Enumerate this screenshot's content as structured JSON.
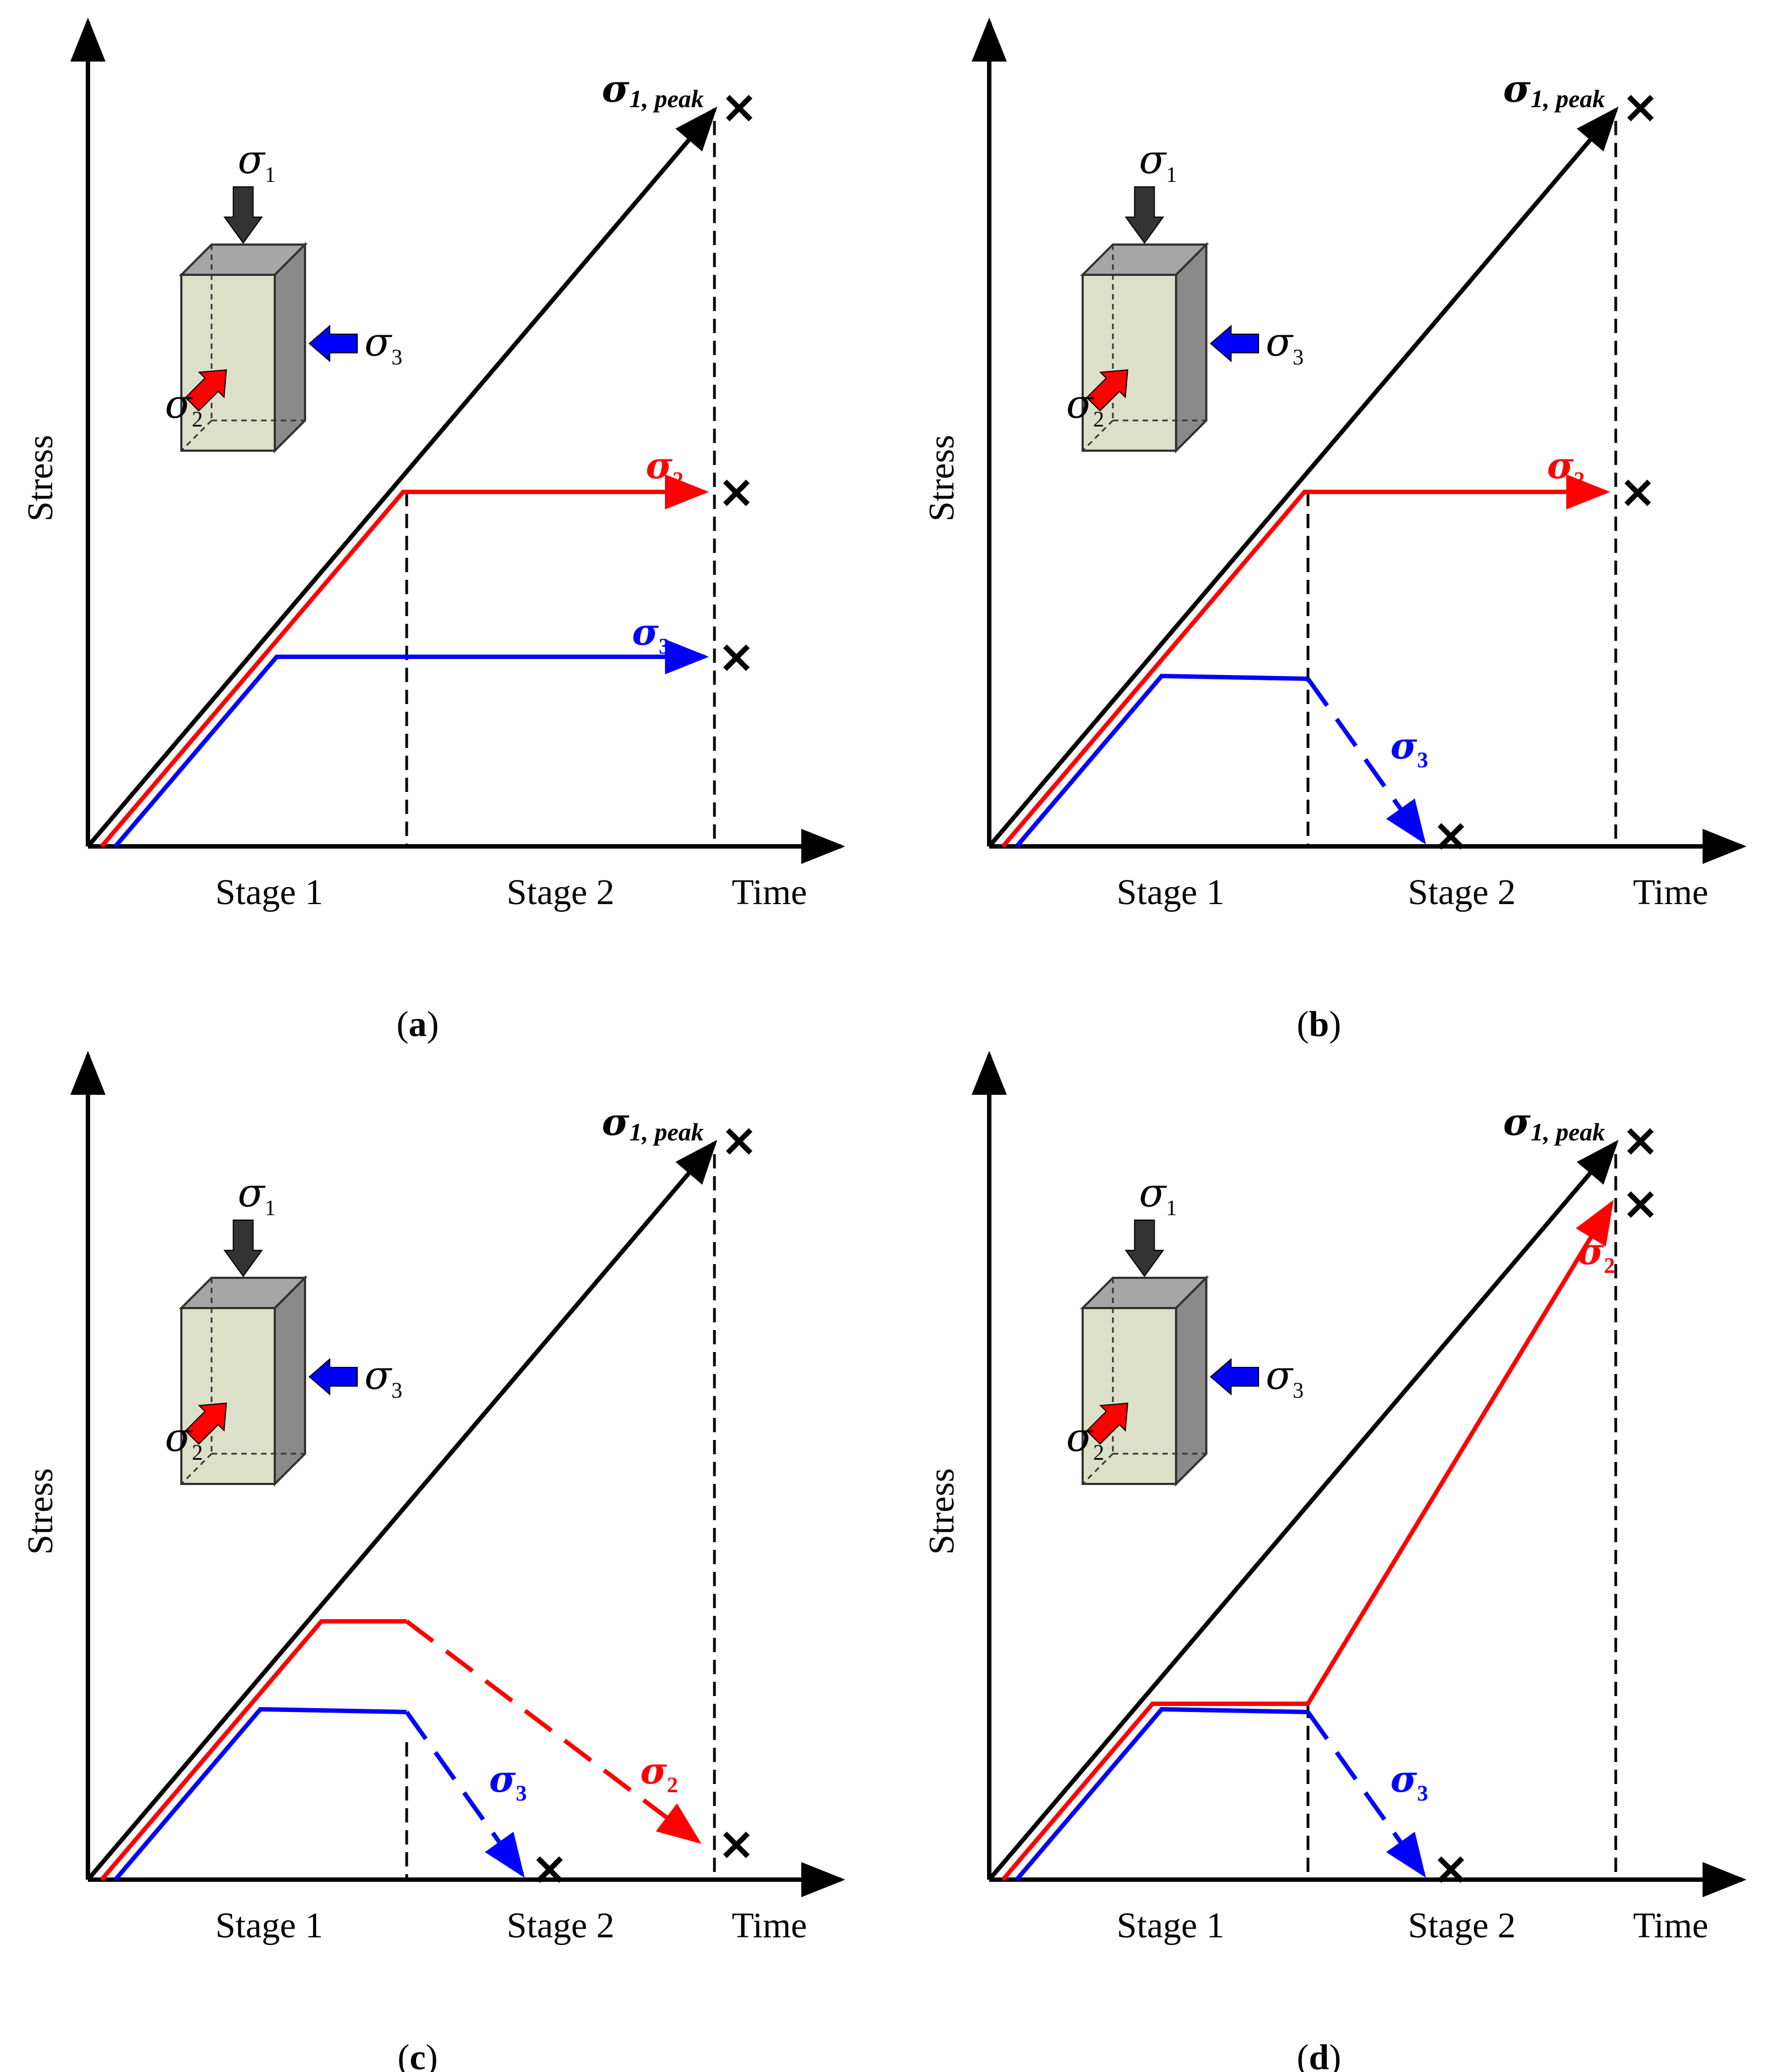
{
  "colors": {
    "sigma1": "#000000",
    "sigma2": "#ff0000",
    "sigma3": "#0000ff",
    "specimen_front": "#dde0c8",
    "specimen_side": "#8a8a8a",
    "specimen_top": "#a6a6a6"
  },
  "labels": {
    "y_axis": "Stress",
    "x_axis": "Time",
    "stage1": "Stage 1",
    "stage2": "Stage 2",
    "sigma": "σ",
    "sub1": "1",
    "sub2": "2",
    "sub3": "3",
    "peak_sub": "1, peak",
    "x_mark": "×"
  },
  "panels": [
    {
      "id": "a",
      "caption_open": "(",
      "caption_letter": "a",
      "caption_close": ")",
      "sigma2_behavior": "constant",
      "sigma3_behavior": "constant"
    },
    {
      "id": "b",
      "caption_open": "(",
      "caption_letter": "b",
      "caption_close": ")",
      "sigma2_behavior": "constant",
      "sigma3_behavior": "unloaded"
    },
    {
      "id": "c",
      "caption_open": "(",
      "caption_letter": "c",
      "caption_close": ")",
      "sigma2_behavior": "unloaded",
      "sigma3_behavior": "unloaded"
    },
    {
      "id": "d",
      "caption_open": "(",
      "caption_letter": "d",
      "caption_close": ")",
      "sigma2_behavior": "increasing",
      "sigma3_behavior": "unloaded"
    }
  ]
}
